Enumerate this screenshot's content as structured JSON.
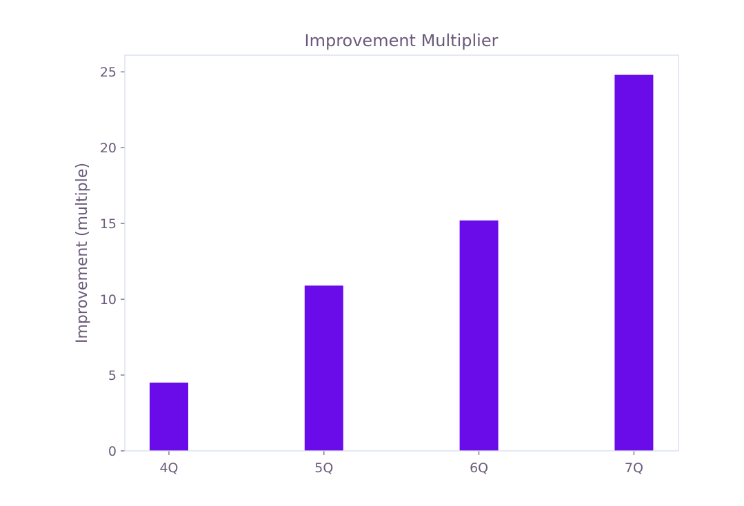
{
  "chart_data": {
    "type": "bar",
    "title": "Improvement Multiplier",
    "xlabel": "",
    "ylabel": "Improvement (multiple)",
    "categories": [
      "4Q",
      "5Q",
      "6Q",
      "7Q"
    ],
    "values": [
      4.5,
      10.9,
      15.2,
      24.8
    ],
    "ylim": [
      0,
      26.1
    ],
    "yticks": [
      0,
      5,
      10,
      15,
      20,
      25
    ],
    "grid": false,
    "legend": "none",
    "colors": {
      "bar": "#6a0be9",
      "frame": "#d5ddee",
      "text": "#6a5a7a"
    }
  }
}
